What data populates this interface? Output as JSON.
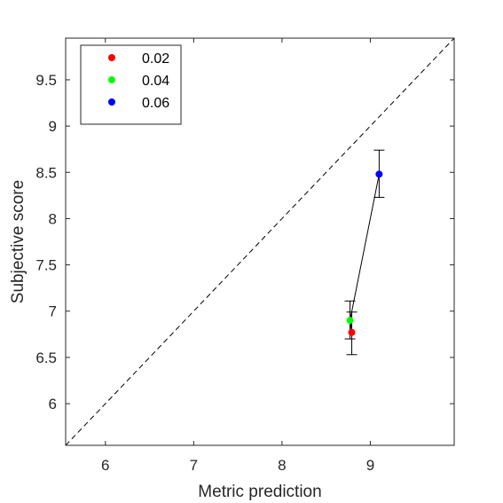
{
  "chart_data": {
    "type": "scatter",
    "title": "",
    "xlabel": "Metric prediction",
    "ylabel": "Subjective score",
    "xlim": [
      5.55,
      9.95
    ],
    "ylim": [
      5.55,
      9.95
    ],
    "xticks": [
      6,
      7,
      8,
      9
    ],
    "yticks": [
      6,
      6.5,
      7,
      7.5,
      8,
      8.5,
      9,
      9.5
    ],
    "xtick_labels": [
      "6",
      "7",
      "8",
      "9"
    ],
    "ytick_labels": [
      "6",
      "6.5",
      "7",
      "7.5",
      "8",
      "8.5",
      "9",
      "9.5"
    ],
    "grid": false,
    "legend_position": "top-left",
    "reference_line": "y = x (dashed)",
    "connecting_line": true,
    "series": [
      {
        "name": "0.02",
        "color": "#ff0000",
        "x": 8.79,
        "y": 6.77,
        "err_low": 6.53,
        "err_high": 6.99
      },
      {
        "name": "0.04",
        "color": "#00ff00",
        "x": 8.77,
        "y": 6.9,
        "err_low": 6.7,
        "err_high": 7.11
      },
      {
        "name": "0.06",
        "color": "#0000ff",
        "x": 9.1,
        "y": 8.48,
        "err_low": 8.23,
        "err_high": 8.74
      }
    ]
  }
}
